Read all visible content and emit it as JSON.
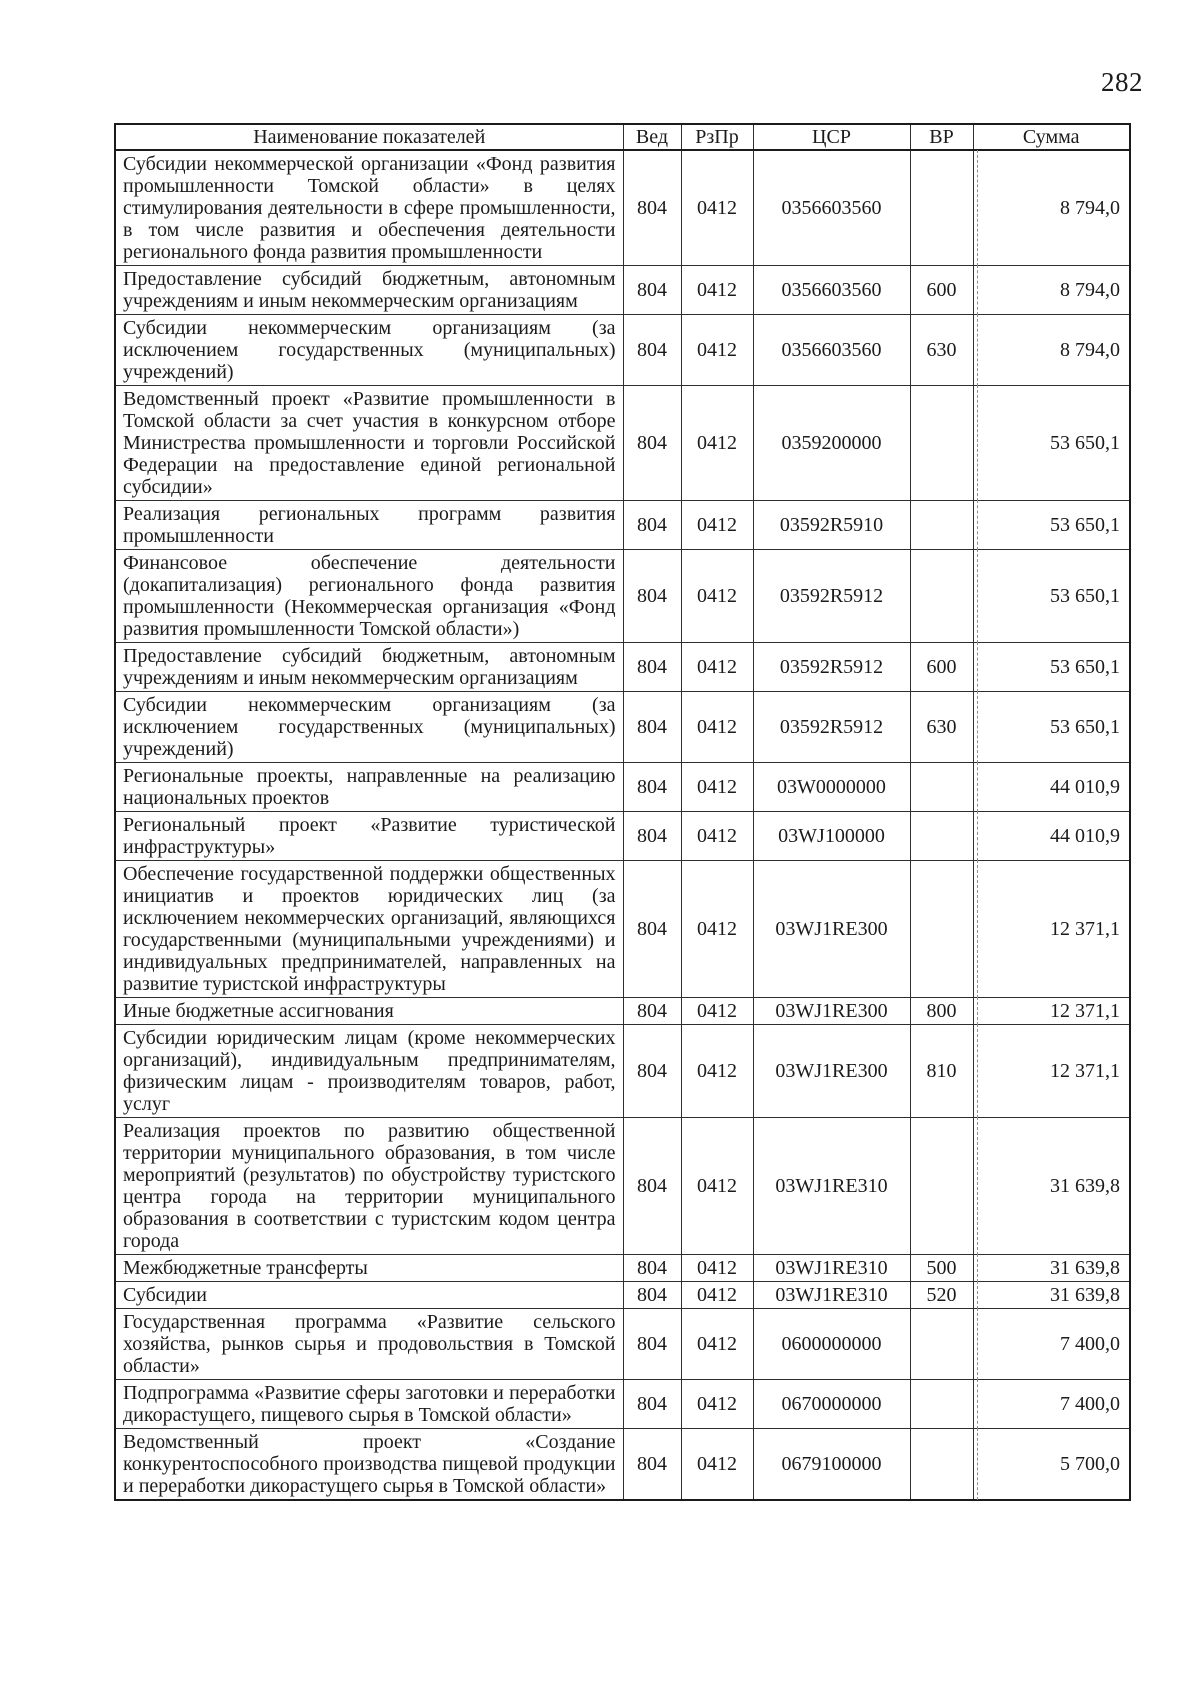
{
  "page": {
    "number": "282"
  },
  "colors": {
    "text": "#1b1b1b",
    "border": "#2e2e2e",
    "outer_border": "#1b1b1b",
    "background": "#ffffff"
  },
  "table": {
    "headers": [
      "Наименование показателей",
      "Вед",
      "РзПр",
      "ЦСР",
      "ВР",
      "Сумма"
    ],
    "rows": [
      {
        "name": "Субсидии некоммерческой организации «Фонд развития промышленности Томской области» в целях стимулирования деятельности в сфере промышленности, в том числе развития и обеспечения деятельности регионального фонда развития промышленности",
        "ved": "804",
        "rzpr": "0412",
        "csr": "0356603560",
        "vr": "",
        "sum": "8 794,0"
      },
      {
        "name": "Предоставление субсидий бюджетным, автономным учреждениям и иным некоммерческим организациям",
        "ved": "804",
        "rzpr": "0412",
        "csr": "0356603560",
        "vr": "600",
        "sum": "8 794,0"
      },
      {
        "name": "Субсидии некоммерческим организациям (за исключением государственных (муниципальных) учреждений)",
        "ved": "804",
        "rzpr": "0412",
        "csr": "0356603560",
        "vr": "630",
        "sum": "8 794,0"
      },
      {
        "name": "Ведомственный проект «Развитие промышленности в Томской области за счет участия в конкурсном отборе Министрества промышленности и торговли Российской Федерации на предоставление единой региональной субсидии»",
        "ved": "804",
        "rzpr": "0412",
        "csr": "0359200000",
        "vr": "",
        "sum": "53 650,1"
      },
      {
        "name": "Реализация региональных программ развития промышленности",
        "ved": "804",
        "rzpr": "0412",
        "csr": "03592R5910",
        "vr": "",
        "sum": "53 650,1"
      },
      {
        "name": "Финансовое обеспечение деятельности (докапитализация) регионального фонда развития промышленности (Некоммерческая организация «Фонд развития промышленности Томской области»)",
        "ved": "804",
        "rzpr": "0412",
        "csr": "03592R5912",
        "vr": "",
        "sum": "53 650,1"
      },
      {
        "name": "Предоставление субсидий бюджетным, автономным учреждениям и иным некоммерческим организациям",
        "ved": "804",
        "rzpr": "0412",
        "csr": "03592R5912",
        "vr": "600",
        "sum": "53 650,1"
      },
      {
        "name": "Субсидии некоммерческим организациям (за исключением государственных (муниципальных) учреждений)",
        "ved": "804",
        "rzpr": "0412",
        "csr": "03592R5912",
        "vr": "630",
        "sum": "53 650,1"
      },
      {
        "name": "Региональные проекты, направленные на реализацию национальных проектов",
        "ved": "804",
        "rzpr": "0412",
        "csr": "03W0000000",
        "vr": "",
        "sum": "44 010,9"
      },
      {
        "name": "Региональный проект «Развитие туристической инфраструктуры»",
        "ved": "804",
        "rzpr": "0412",
        "csr": "03WJ100000",
        "vr": "",
        "sum": "44 010,9"
      },
      {
        "name": "Обеспечение государственной поддержки общественных инициатив и проектов юридических лиц (за исключением некоммерческих организаций, являющихся государственными (муниципальными учреждениями) и индивидуальных предпринимателей, направленных на развитие туристской инфраструктуры",
        "ved": "804",
        "rzpr": "0412",
        "csr": "03WJ1RE300",
        "vr": "",
        "sum": "12 371,1"
      },
      {
        "name": "Иные бюджетные ассигнования",
        "ved": "804",
        "rzpr": "0412",
        "csr": "03WJ1RE300",
        "vr": "800",
        "sum": "12 371,1"
      },
      {
        "name": "Субсидии юридическим лицам (кроме некоммерческих организаций), индивидуальным предпринимателям, физическим лицам - производителям товаров, работ, услуг",
        "ved": "804",
        "rzpr": "0412",
        "csr": "03WJ1RE300",
        "vr": "810",
        "sum": "12 371,1"
      },
      {
        "name": "Реализация проектов по развитию общественной территории муниципального образования, в том числе мероприятий (результатов) по обустройству туристского центра города на территории муниципального образования в соответствии с туристским кодом центра города",
        "ved": "804",
        "rzpr": "0412",
        "csr": "03WJ1RE310",
        "vr": "",
        "sum": "31 639,8"
      },
      {
        "name": "Межбюджетные трансферты",
        "ved": "804",
        "rzpr": "0412",
        "csr": "03WJ1RE310",
        "vr": "500",
        "sum": "31 639,8"
      },
      {
        "name": "Субсидии",
        "ved": "804",
        "rzpr": "0412",
        "csr": "03WJ1RE310",
        "vr": "520",
        "sum": "31 639,8"
      },
      {
        "name": "Государственная программа «Развитие сельского хозяйства, рынков сырья и продовольствия в Томской области»",
        "ved": "804",
        "rzpr": "0412",
        "csr": "0600000000",
        "vr": "",
        "sum": "7 400,0"
      },
      {
        "name": "Подпрограмма «Развитие сферы заготовки и переработки дикорастущего, пищевого сырья в Томской области»",
        "ved": "804",
        "rzpr": "0412",
        "csr": "0670000000",
        "vr": "",
        "sum": "7 400,0"
      },
      {
        "name": "Ведомственный проект «Создание конкурентоспособного производства пищевой продукции и переработки дикорастущего сырья в Томской области»",
        "ved": "804",
        "rzpr": "0412",
        "csr": "0679100000",
        "vr": "",
        "sum": "5 700,0"
      }
    ]
  }
}
